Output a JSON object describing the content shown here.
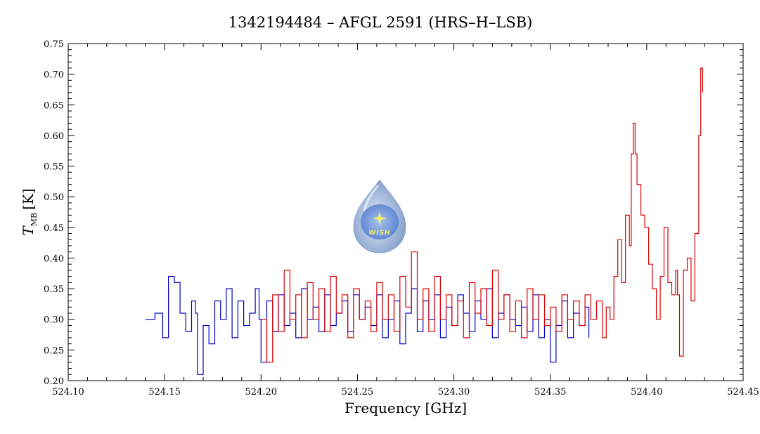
{
  "chart_data": {
    "type": "line",
    "title": "1342194484 – AFGL 2591 (HRS–H–LSB)",
    "xlabel": "Frequency [GHz]",
    "ylabel_main": "T",
    "ylabel_sub": "MB",
    "ylabel_unit": "[K]",
    "xlim": [
      524.1,
      524.45
    ],
    "ylim": [
      0.2,
      0.75
    ],
    "x_ticks": [
      "524.10",
      "524.15",
      "524.20",
      "524.25",
      "524.30",
      "524.35",
      "524.40",
      "524.45"
    ],
    "y_ticks": [
      "0.20",
      "0.25",
      "0.30",
      "0.35",
      "0.40",
      "0.45",
      "0.50",
      "0.55",
      "0.60",
      "0.65",
      "0.70",
      "0.75"
    ],
    "grid": false,
    "logo_text": "WISH",
    "series": [
      {
        "color": "#0000cc",
        "x": [
          524.14,
          524.145,
          524.149,
          524.152,
          524.155,
          524.158,
          524.161,
          524.164,
          524.166,
          524.167,
          524.17,
          524.173,
          524.176,
          524.179,
          524.182,
          524.185,
          524.188,
          524.191,
          524.194,
          524.197,
          524.199,
          524.2,
          524.203,
          524.206,
          524.209,
          524.212,
          524.215,
          524.218,
          524.221,
          524.224,
          524.227,
          524.23,
          524.233,
          524.236,
          524.239,
          524.242,
          524.245,
          524.248,
          524.251,
          524.254,
          524.257,
          524.26,
          524.263,
          524.266,
          524.269,
          524.272,
          524.275,
          524.278,
          524.281,
          524.284,
          524.287,
          524.29,
          524.293,
          524.296,
          524.299,
          524.302,
          524.305,
          524.308,
          524.311,
          524.314,
          524.317,
          524.32,
          524.323,
          524.326,
          524.329,
          524.332,
          524.335,
          524.338,
          524.341,
          524.344,
          524.347,
          524.35,
          524.353,
          524.356,
          524.359,
          524.362,
          524.365,
          524.368,
          524.37
        ],
        "y": [
          0.3,
          0.31,
          0.27,
          0.37,
          0.36,
          0.31,
          0.28,
          0.33,
          0.31,
          0.21,
          0.29,
          0.26,
          0.33,
          0.3,
          0.35,
          0.27,
          0.33,
          0.29,
          0.31,
          0.35,
          0.3,
          0.23,
          0.33,
          0.28,
          0.34,
          0.29,
          0.31,
          0.27,
          0.35,
          0.3,
          0.32,
          0.28,
          0.34,
          0.29,
          0.31,
          0.33,
          0.28,
          0.34,
          0.3,
          0.32,
          0.29,
          0.34,
          0.27,
          0.3,
          0.33,
          0.26,
          0.31,
          0.35,
          0.28,
          0.33,
          0.3,
          0.34,
          0.27,
          0.32,
          0.29,
          0.34,
          0.31,
          0.28,
          0.33,
          0.3,
          0.35,
          0.27,
          0.31,
          0.34,
          0.3,
          0.29,
          0.32,
          0.28,
          0.34,
          0.27,
          0.3,
          0.23,
          0.29,
          0.33,
          0.27,
          0.31,
          0.29,
          0.32,
          0.27
        ]
      },
      {
        "color": "#dd0000",
        "x": [
          524.2,
          524.203,
          524.206,
          524.209,
          524.212,
          524.215,
          524.218,
          524.221,
          524.224,
          524.227,
          524.23,
          524.233,
          524.236,
          524.239,
          524.242,
          524.245,
          524.248,
          524.251,
          524.254,
          524.257,
          524.26,
          524.263,
          524.266,
          524.269,
          524.272,
          524.275,
          524.278,
          524.281,
          524.284,
          524.287,
          524.29,
          524.293,
          524.296,
          524.299,
          524.302,
          524.305,
          524.308,
          524.311,
          524.314,
          524.317,
          524.32,
          524.323,
          524.326,
          524.329,
          524.332,
          524.335,
          524.338,
          524.341,
          524.344,
          524.347,
          524.35,
          524.353,
          524.356,
          524.359,
          524.362,
          524.365,
          524.368,
          524.371,
          524.374,
          524.377,
          524.379,
          524.381,
          524.383,
          524.385,
          524.387,
          524.389,
          524.391,
          524.392,
          524.393,
          524.394,
          524.395,
          524.397,
          524.399,
          524.401,
          524.403,
          524.405,
          524.407,
          524.409,
          524.411,
          524.413,
          524.415,
          524.416,
          524.417,
          524.419,
          524.421,
          524.423,
          524.425,
          524.427,
          524.428,
          524.429
        ],
        "y": [
          0.3,
          0.23,
          0.34,
          0.28,
          0.38,
          0.3,
          0.34,
          0.27,
          0.36,
          0.3,
          0.35,
          0.28,
          0.37,
          0.31,
          0.34,
          0.27,
          0.35,
          0.3,
          0.33,
          0.28,
          0.36,
          0.3,
          0.34,
          0.28,
          0.37,
          0.32,
          0.41,
          0.3,
          0.35,
          0.28,
          0.37,
          0.3,
          0.34,
          0.29,
          0.33,
          0.27,
          0.36,
          0.31,
          0.35,
          0.29,
          0.38,
          0.3,
          0.34,
          0.28,
          0.33,
          0.27,
          0.35,
          0.3,
          0.34,
          0.29,
          0.32,
          0.28,
          0.34,
          0.3,
          0.33,
          0.29,
          0.34,
          0.3,
          0.33,
          0.27,
          0.32,
          0.3,
          0.37,
          0.43,
          0.36,
          0.47,
          0.42,
          0.57,
          0.62,
          0.57,
          0.52,
          0.47,
          0.45,
          0.39,
          0.35,
          0.3,
          0.37,
          0.45,
          0.36,
          0.34,
          0.38,
          0.34,
          0.24,
          0.38,
          0.4,
          0.33,
          0.44,
          0.6,
          0.71,
          0.67
        ]
      }
    ]
  }
}
